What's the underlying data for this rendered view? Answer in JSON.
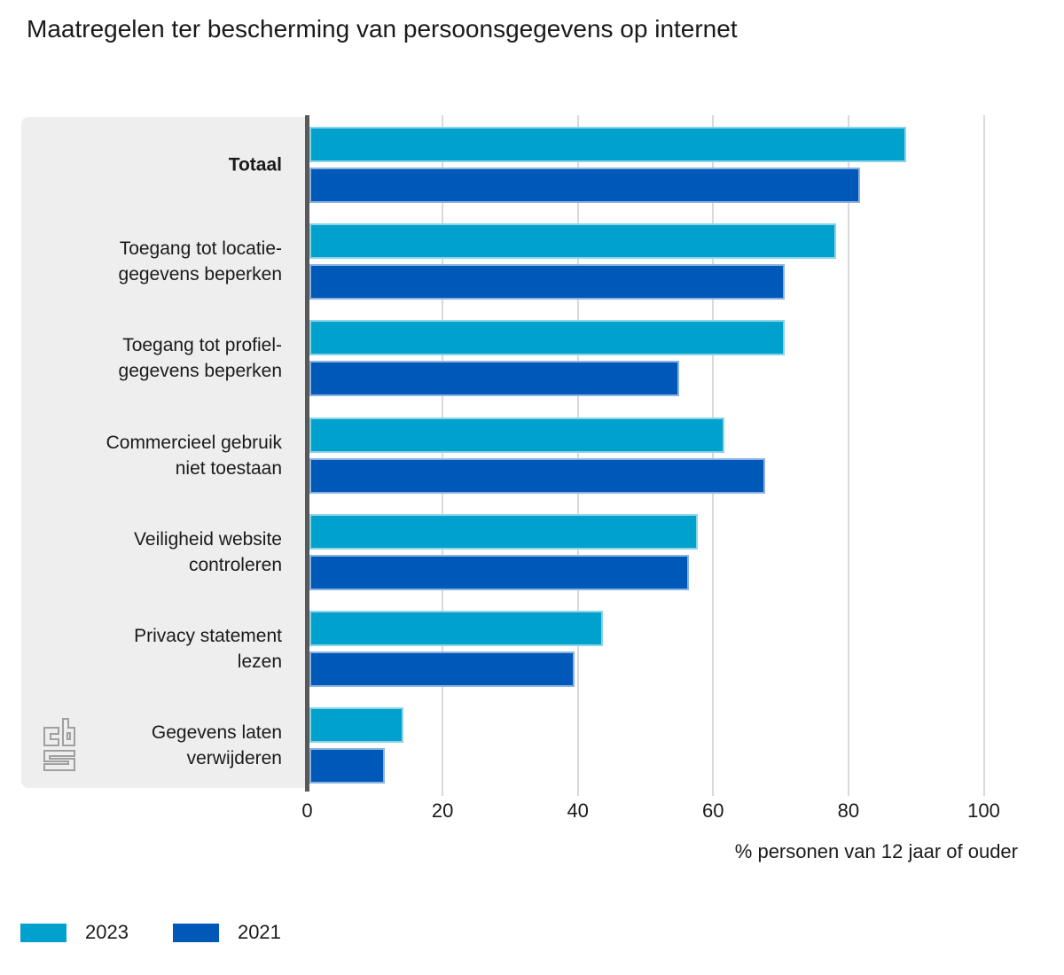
{
  "title": "Maatregelen ter bescherming van persoonsgegevens op internet",
  "chart_data": {
    "type": "bar",
    "orientation": "horizontal",
    "title": "Maatregelen ter bescherming van persoonsgegevens op internet",
    "xlabel": "% personen van 12 jaar of ouder",
    "xlim": [
      0,
      100
    ],
    "ticks": [
      0,
      20,
      40,
      60,
      80,
      100
    ],
    "grid": true,
    "legend_position": "bottom",
    "categories": [
      {
        "label": "Totaal",
        "lines": [
          "Totaal"
        ],
        "bold": true
      },
      {
        "label": "Toegang tot locatie-gegevens beperken",
        "lines": [
          "Toegang tot locatie-",
          "gegevens beperken"
        ],
        "bold": false
      },
      {
        "label": "Toegang tot profiel-gegevens beperken",
        "lines": [
          "Toegang tot profiel-",
          "gegevens beperken"
        ],
        "bold": false
      },
      {
        "label": "Commercieel gebruik niet toestaan",
        "lines": [
          "Commercieel gebruik",
          "niet toestaan"
        ],
        "bold": false
      },
      {
        "label": "Veiligheid website controleren",
        "lines": [
          "Veiligheid website",
          "controleren"
        ],
        "bold": false
      },
      {
        "label": "Privacy statement lezen",
        "lines": [
          "Privacy statement",
          "lezen"
        ],
        "bold": false
      },
      {
        "label": "Gegevens laten verwijderen",
        "lines": [
          "Gegevens laten",
          "verwijderen"
        ],
        "bold": false
      }
    ],
    "series": [
      {
        "name": "2023",
        "color": "#00a1cd",
        "values": [
          88.2,
          77.9,
          70.3,
          61.3,
          57.4,
          43.4,
          13.9
        ]
      },
      {
        "name": "2021",
        "color": "#0058b8",
        "values": [
          81.4,
          70.3,
          54.6,
          67.4,
          56.1,
          39.2,
          11.1
        ]
      }
    ]
  },
  "colors": {
    "panel_background": "#eeeeee",
    "axis_line": "#58595b",
    "gridline": "#d9d9d9",
    "text": "#1a1a1a",
    "logo_gray": "#a0a0a0"
  },
  "logo": "cbs-logo"
}
